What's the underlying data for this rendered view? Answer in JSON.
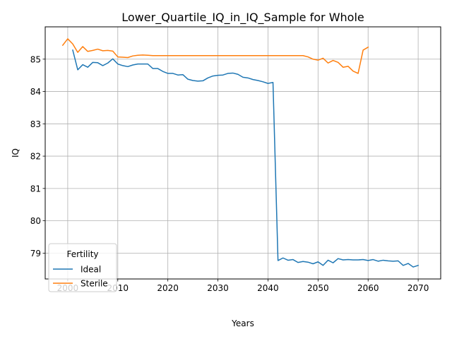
{
  "chart_data": {
    "type": "line",
    "title": "Lower_Quartile_IQ_in_IQ_Sample for Whole",
    "xlabel": "Years",
    "ylabel": "IQ",
    "xlim": [
      1995.5,
      2074.5
    ],
    "ylim": [
      78.2,
      86.0
    ],
    "xticks": [
      2000,
      2010,
      2020,
      2030,
      2040,
      2050,
      2060,
      2070
    ],
    "yticks": [
      79,
      80,
      81,
      82,
      83,
      84,
      85
    ],
    "grid": true,
    "legend": {
      "title": "Fertility",
      "position": "lower left"
    },
    "series": [
      {
        "name": "Ideal",
        "color": "#1f77b4",
        "x": [
          2001,
          2002,
          2003,
          2004,
          2005,
          2006,
          2007,
          2008,
          2009,
          2010,
          2011,
          2012,
          2013,
          2014,
          2015,
          2016,
          2017,
          2018,
          2019,
          2020,
          2021,
          2022,
          2023,
          2024,
          2025,
          2026,
          2027,
          2028,
          2029,
          2030,
          2031,
          2032,
          2033,
          2034,
          2035,
          2036,
          2037,
          2038,
          2039,
          2040,
          2041,
          2042,
          2043,
          2044,
          2045,
          2046,
          2047,
          2048,
          2049,
          2050,
          2051,
          2052,
          2053,
          2054,
          2055,
          2056,
          2057,
          2058,
          2059,
          2060,
          2061,
          2062,
          2063,
          2064,
          2065,
          2066,
          2067,
          2068,
          2069,
          2070
        ],
        "y": [
          85.28,
          84.67,
          84.83,
          84.75,
          84.9,
          84.89,
          84.8,
          84.88,
          85.01,
          84.85,
          84.8,
          84.77,
          84.82,
          84.85,
          84.85,
          84.85,
          84.71,
          84.71,
          84.62,
          84.56,
          84.56,
          84.51,
          84.52,
          84.38,
          84.34,
          84.32,
          84.33,
          84.42,
          84.48,
          84.5,
          84.51,
          84.56,
          84.57,
          84.53,
          84.44,
          84.42,
          84.37,
          84.34,
          84.3,
          84.25,
          84.28,
          78.77,
          78.85,
          78.78,
          78.8,
          78.71,
          78.74,
          78.72,
          78.67,
          78.73,
          78.62,
          78.78,
          78.7,
          78.83,
          78.79,
          78.8,
          78.79,
          78.79,
          78.8,
          78.77,
          78.8,
          78.75,
          78.78,
          78.76,
          78.75,
          78.76,
          78.62,
          78.68,
          78.57,
          78.62
        ]
      },
      {
        "name": "Sterile",
        "color": "#ff7f0e",
        "x": [
          1999,
          2000,
          2001,
          2002,
          2003,
          2004,
          2005,
          2006,
          2007,
          2008,
          2009,
          2010,
          2011,
          2012,
          2013,
          2014,
          2015,
          2016,
          2017,
          2018,
          2019,
          2020,
          2021,
          2022,
          2023,
          2024,
          2025,
          2026,
          2027,
          2028,
          2029,
          2030,
          2031,
          2032,
          2033,
          2034,
          2035,
          2036,
          2037,
          2038,
          2039,
          2040,
          2041,
          2042,
          2043,
          2044,
          2045,
          2046,
          2047,
          2048,
          2049,
          2050,
          2051,
          2052,
          2053,
          2054,
          2055,
          2056,
          2057,
          2058,
          2059,
          2060
        ],
        "y": [
          85.43,
          85.63,
          85.47,
          85.21,
          85.39,
          85.24,
          85.27,
          85.31,
          85.26,
          85.27,
          85.25,
          85.07,
          85.06,
          85.05,
          85.1,
          85.12,
          85.13,
          85.12,
          85.11,
          85.11,
          85.11,
          85.11,
          85.11,
          85.11,
          85.11,
          85.11,
          85.11,
          85.11,
          85.11,
          85.11,
          85.11,
          85.11,
          85.11,
          85.11,
          85.11,
          85.11,
          85.11,
          85.11,
          85.11,
          85.11,
          85.11,
          85.11,
          85.11,
          85.11,
          85.11,
          85.11,
          85.11,
          85.11,
          85.11,
          85.07,
          85.0,
          84.97,
          85.03,
          84.88,
          84.96,
          84.9,
          84.75,
          84.78,
          84.63,
          84.56,
          85.28,
          85.37
        ]
      }
    ]
  }
}
